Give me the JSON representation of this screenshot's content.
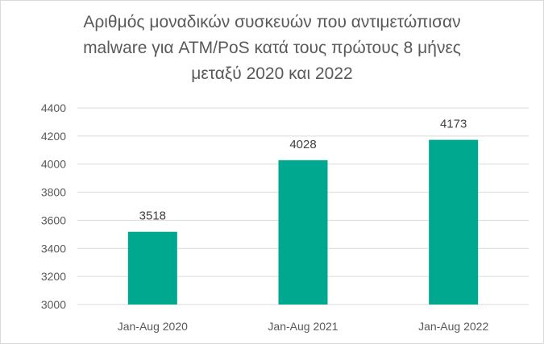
{
  "chart_data": {
    "type": "bar",
    "title_lines": [
      "Αριθμός μοναδικών συσκευών που αντιμετώπισαν",
      "malware για ATM/PoS κατά τους πρώτους 8 μήνες",
      "μεταξύ 2020 και 2022"
    ],
    "categories": [
      "Jan-Aug 2020",
      "Jan-Aug 2021",
      "Jan-Aug 2022"
    ],
    "values": [
      3518,
      4028,
      4173
    ],
    "data_labels": [
      "3518",
      "4028",
      "4173"
    ],
    "ylim": [
      3000,
      4400
    ],
    "yticks": [
      3000,
      3200,
      3400,
      3600,
      3800,
      4000,
      4200,
      4400
    ],
    "grid": true,
    "legend": "none",
    "bar_color": "#00a88f",
    "grid_color": "#d9d9d9"
  }
}
